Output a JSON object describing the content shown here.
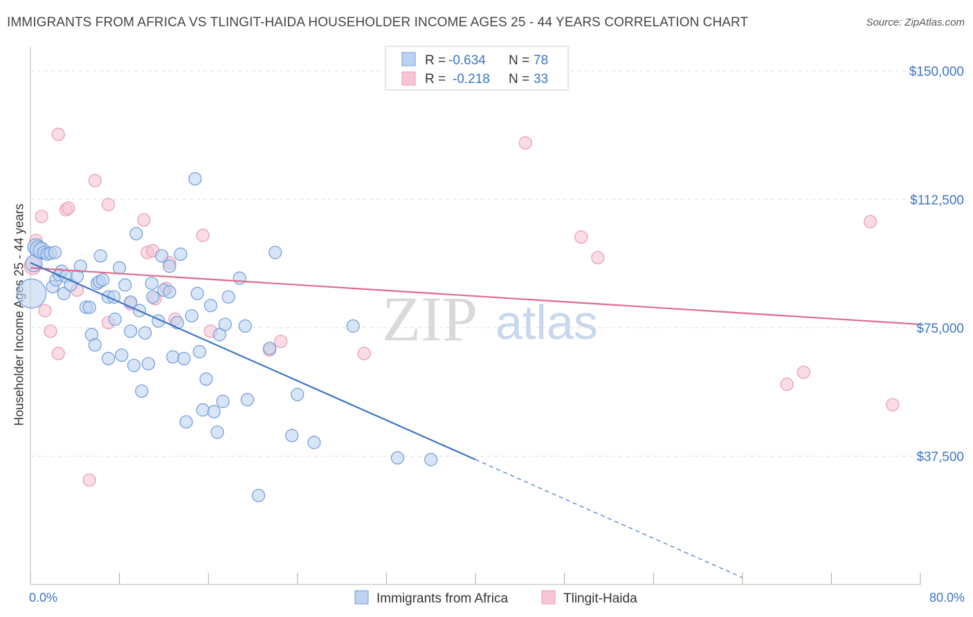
{
  "header": {
    "title": "IMMIGRANTS FROM AFRICA VS TLINGIT-HAIDA HOUSEHOLDER INCOME AGES 25 - 44 YEARS CORRELATION CHART",
    "source": "Source: ZipAtlas.com"
  },
  "legend": {
    "rows": [
      {
        "r_label": "R =",
        "r_value": "-0.634",
        "n_label": "N =",
        "n_value": "78"
      },
      {
        "r_label": "R =",
        "r_value": "-0.218",
        "n_label": "N =",
        "n_value": "33"
      }
    ]
  },
  "bottom_legend": [
    "Immigrants from Africa",
    "Tlingit-Haida"
  ],
  "watermark": {
    "zip": "ZIP",
    "atlas": "atlas"
  },
  "colors": {
    "blue": "#3b74c8",
    "blue_fill": "#bcd3f1",
    "blue_stroke": "#6f9ad8",
    "pink": "#e0698f",
    "pink_fill": "#f7c5d5",
    "pink_stroke": "#e89ab3",
    "grid": "#dddddd"
  },
  "chart_data": {
    "type": "scatter",
    "title": "IMMIGRANTS FROM AFRICA VS TLINGIT-HAIDA HOUSEHOLDER INCOME AGES 25 - 44 YEARS CORRELATION CHART",
    "xlabel": "",
    "ylabel": "Householder Income Ages 25 - 44 years",
    "xlim": [
      0,
      80
    ],
    "ylim": [
      0,
      155000
    ],
    "x_tick_labels": [
      "0.0%",
      "80.0%"
    ],
    "y_ticks": [
      37500,
      75000,
      112500,
      150000
    ],
    "y_tick_labels": [
      "$37,500",
      "$75,000",
      "$112,500",
      "$150,000"
    ],
    "grid": true,
    "legend_position": "top-center",
    "series": [
      {
        "name": "Immigrants from Africa",
        "color": "#3b74c8",
        "r": -0.634,
        "n": 78,
        "trend": {
          "x": [
            0,
            40
          ],
          "y": [
            94000,
            36500
          ]
        },
        "trend_dashed": {
          "x": [
            40,
            64
          ],
          "y": [
            36500,
            2000
          ]
        },
        "points": [
          [
            0.1,
            85000,
            3
          ],
          [
            0.3,
            93800,
            2
          ],
          [
            0.5,
            98600,
            2
          ],
          [
            0.7,
            98000,
            2
          ],
          [
            1.0,
            97500,
            2
          ],
          [
            1.2,
            97000,
            1
          ],
          [
            1.5,
            96500,
            1
          ],
          [
            1.8,
            96800,
            1
          ],
          [
            2.0,
            87000,
            1
          ],
          [
            2.3,
            89000,
            1
          ],
          [
            2.6,
            90500,
            1
          ],
          [
            2.8,
            91500,
            1
          ],
          [
            3.0,
            85000,
            1
          ],
          [
            3.2,
            90000,
            1
          ],
          [
            3.6,
            87500,
            1
          ],
          [
            4.5,
            93000,
            1
          ],
          [
            5.0,
            81000,
            1
          ],
          [
            5.3,
            81000,
            1
          ],
          [
            5.5,
            73000,
            1
          ],
          [
            5.8,
            70000,
            1
          ],
          [
            6.0,
            88000,
            1
          ],
          [
            6.2,
            88500,
            1
          ],
          [
            6.3,
            96000,
            1
          ],
          [
            6.5,
            89000,
            1
          ],
          [
            7.0,
            84000,
            1
          ],
          [
            7.0,
            66000,
            1
          ],
          [
            7.5,
            84000,
            1
          ],
          [
            7.6,
            77500,
            1
          ],
          [
            8.0,
            92500,
            1
          ],
          [
            8.2,
            67000,
            1
          ],
          [
            8.5,
            87500,
            1
          ],
          [
            9.0,
            82500,
            1
          ],
          [
            9.0,
            74000,
            1
          ],
          [
            9.3,
            64000,
            1
          ],
          [
            9.5,
            102500,
            1
          ],
          [
            9.8,
            80000,
            1
          ],
          [
            10.0,
            56500,
            1
          ],
          [
            10.3,
            73500,
            1
          ],
          [
            10.6,
            64500,
            1
          ],
          [
            10.9,
            88000,
            1
          ],
          [
            11.0,
            84000,
            1
          ],
          [
            11.5,
            77000,
            1
          ],
          [
            11.8,
            96000,
            1
          ],
          [
            12.0,
            86000,
            1
          ],
          [
            12.5,
            85500,
            1
          ],
          [
            12.5,
            93000,
            1
          ],
          [
            12.8,
            66500,
            1
          ],
          [
            13.2,
            76500,
            1
          ],
          [
            13.5,
            96500,
            1
          ],
          [
            13.8,
            66000,
            1
          ],
          [
            14.0,
            47500,
            1
          ],
          [
            14.5,
            78500,
            1
          ],
          [
            14.8,
            118500,
            1
          ],
          [
            15.0,
            85000,
            1
          ],
          [
            15.2,
            68000,
            1
          ],
          [
            15.5,
            51000,
            1
          ],
          [
            15.8,
            60000,
            1
          ],
          [
            16.2,
            81500,
            1
          ],
          [
            16.5,
            50500,
            1
          ],
          [
            16.8,
            44500,
            1
          ],
          [
            17.0,
            73000,
            1
          ],
          [
            17.3,
            53500,
            1
          ],
          [
            17.5,
            76000,
            1
          ],
          [
            17.8,
            84000,
            1
          ],
          [
            18.8,
            89500,
            1
          ],
          [
            19.3,
            75500,
            1
          ],
          [
            19.5,
            54000,
            1
          ],
          [
            20.5,
            26000,
            1
          ],
          [
            21.5,
            69000,
            1
          ],
          [
            22.0,
            97000,
            1
          ],
          [
            23.5,
            43500,
            1
          ],
          [
            24.0,
            55500,
            1
          ],
          [
            25.5,
            41500,
            1
          ],
          [
            29.0,
            75500,
            1
          ],
          [
            33.0,
            37000,
            1
          ],
          [
            36.0,
            36500,
            1
          ],
          [
            2.2,
            97000,
            1
          ],
          [
            4.2,
            90000,
            1
          ]
        ]
      },
      {
        "name": "Tlingit-Haida",
        "color": "#e0698f",
        "r": -0.218,
        "n": 33,
        "trend": {
          "x": [
            0,
            80
          ],
          "y": [
            92500,
            76000
          ]
        },
        "points": [
          [
            0.2,
            93000,
            2
          ],
          [
            0.5,
            100500,
            1
          ],
          [
            1.0,
            107500,
            1
          ],
          [
            1.3,
            80000,
            1
          ],
          [
            1.8,
            74000,
            1
          ],
          [
            2.5,
            67500,
            1
          ],
          [
            2.5,
            131500,
            1
          ],
          [
            3.2,
            109500,
            1
          ],
          [
            3.4,
            110000,
            1
          ],
          [
            4.2,
            86000,
            1
          ],
          [
            5.3,
            30500,
            1
          ],
          [
            5.8,
            118000,
            1
          ],
          [
            7.0,
            76500,
            1
          ],
          [
            7.0,
            111000,
            1
          ],
          [
            9.0,
            82000,
            1
          ],
          [
            10.2,
            106500,
            1
          ],
          [
            10.5,
            97000,
            1
          ],
          [
            11.0,
            97500,
            1
          ],
          [
            11.2,
            83500,
            1
          ],
          [
            12.2,
            86500,
            1
          ],
          [
            12.5,
            94000,
            1
          ],
          [
            13.0,
            77500,
            1
          ],
          [
            15.5,
            102000,
            1
          ],
          [
            16.2,
            74000,
            1
          ],
          [
            21.5,
            68500,
            1
          ],
          [
            22.5,
            71000,
            1
          ],
          [
            30.0,
            67500,
            1
          ],
          [
            44.5,
            129000,
            1
          ],
          [
            49.5,
            101500,
            1
          ],
          [
            51.0,
            95500,
            1
          ],
          [
            68.0,
            58500,
            1
          ],
          [
            69.5,
            62000,
            1
          ],
          [
            77.5,
            52500,
            1
          ],
          [
            75.5,
            106000,
            1
          ]
        ]
      }
    ]
  }
}
